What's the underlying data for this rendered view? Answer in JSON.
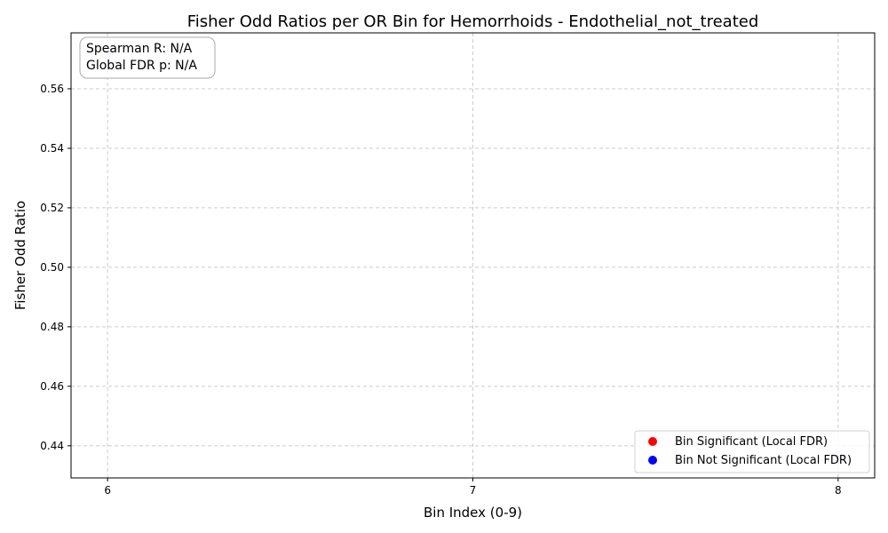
{
  "chart_data": {
    "type": "scatter",
    "title": "Fisher Odd Ratios per OR Bin for Hemorrhoids - Endothelial_not_treated",
    "xlabel": "Bin Index (0-9)",
    "ylabel": "Fisher Odd Ratio",
    "xlim": [
      5.9,
      8.1
    ],
    "ylim": [
      0.4292,
      0.5788
    ],
    "x_ticks": [
      6,
      7,
      8
    ],
    "x_tick_labels": [
      "6",
      "7",
      "8"
    ],
    "y_ticks": [
      0.44,
      0.46,
      0.48,
      0.5,
      0.52,
      0.54,
      0.56
    ],
    "y_tick_labels": [
      "0.44",
      "0.46",
      "0.48",
      "0.50",
      "0.52",
      "0.54",
      "0.56"
    ],
    "grid": true,
    "legend_position": "lower right",
    "series": [
      {
        "name": "Bin Significant (Local FDR)",
        "color": "#ff0000",
        "points": []
      },
      {
        "name": "Bin Not Significant (Local FDR)",
        "color": "#0000ff",
        "points": [
          {
            "x": 6,
            "y": 0.572
          },
          {
            "x": 8,
            "y": 0.436
          }
        ]
      }
    ],
    "annotation": [
      "Spearman R: N/A",
      "Global FDR p: N/A"
    ]
  }
}
